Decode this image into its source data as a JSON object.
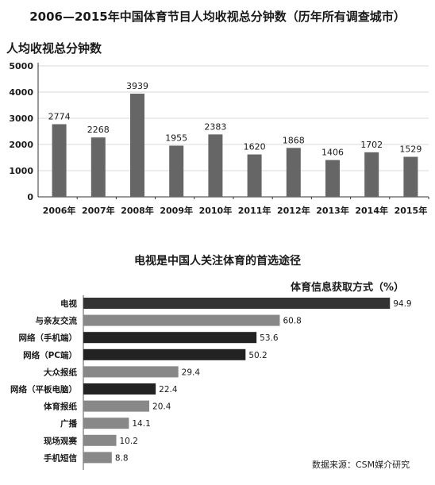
{
  "chart_data": [
    {
      "type": "bar",
      "title": "2006—2015年中国体育节目人均收视总分钟数（历年所有调查城市）",
      "ylabel": "人均收视总分钟数",
      "categories": [
        "2006年",
        "2007年",
        "2008年",
        "2009年",
        "2010年",
        "2011年",
        "2012年",
        "2013年",
        "2014年",
        "2015年"
      ],
      "values": [
        2774,
        2268,
        3939,
        1955,
        2383,
        1620,
        1868,
        1406,
        1702,
        1529
      ],
      "value_labels": [
        "2774",
        "2268",
        "3939",
        "1955",
        "2383",
        "1620",
        "1868",
        "1406",
        "1702",
        "1529"
      ],
      "yticks": [
        "5000",
        "4000",
        "3000",
        "2000",
        "1000",
        "0"
      ],
      "ylim": [
        0,
        5000
      ],
      "grid": true,
      "bar_color": "#666666"
    },
    {
      "type": "bar",
      "orientation": "horizontal",
      "title": "电视是中国人关注体育的首选途径",
      "legend": "体育信息获取方式（%）",
      "categories": [
        "电视",
        "与亲友交流",
        "网络（手机端）",
        "网络（PC端）",
        "大众报纸",
        "网络（平板电脑）",
        "体育报纸",
        "广播",
        "现场观赛",
        "手机短信"
      ],
      "values": [
        94.9,
        60.8,
        53.6,
        50.2,
        29.4,
        22.4,
        20.4,
        14.1,
        10.2,
        8.8
      ],
      "value_labels": [
        "94.9",
        "60.8",
        "53.6",
        "50.2",
        "29.4",
        "22.4",
        "20.4",
        "14.1",
        "10.2",
        "8.8"
      ],
      "bar_colors": [
        "#333333",
        "#888888",
        "#222222",
        "#222222",
        "#888888",
        "#222222",
        "#888888",
        "#888888",
        "#888888",
        "#888888"
      ],
      "xlim": [
        0,
        100
      ],
      "source": "数据来源：CSM媒介研究"
    }
  ]
}
